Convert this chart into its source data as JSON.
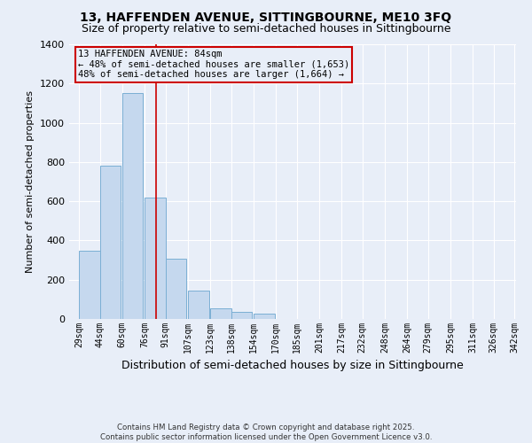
{
  "title_line1": "13, HAFFENDEN AVENUE, SITTINGBOURNE, ME10 3FQ",
  "title_line2": "Size of property relative to semi-detached houses in Sittingbourne",
  "xlabel": "Distribution of semi-detached houses by size in Sittingbourne",
  "ylabel": "Number of semi-detached properties",
  "footer_line1": "Contains HM Land Registry data © Crown copyright and database right 2025.",
  "footer_line2": "Contains public sector information licensed under the Open Government Licence v3.0.",
  "bin_lefts": [
    29,
    44,
    60,
    76,
    91,
    107,
    123,
    138,
    154,
    170,
    185,
    201,
    217,
    232,
    248,
    264,
    279,
    295,
    311,
    326
  ],
  "bin_width": 15,
  "bin_labels": [
    "29sqm",
    "44sqm",
    "60sqm",
    "76sqm",
    "91sqm",
    "107sqm",
    "123sqm",
    "138sqm",
    "154sqm",
    "170sqm",
    "185sqm",
    "201sqm",
    "217sqm",
    "232sqm",
    "248sqm",
    "264sqm",
    "279sqm",
    "295sqm",
    "311sqm",
    "326sqm",
    "342sqm"
  ],
  "counts": [
    350,
    780,
    1150,
    620,
    305,
    145,
    55,
    35,
    25,
    0,
    0,
    0,
    0,
    0,
    0,
    0,
    0,
    0,
    0,
    0
  ],
  "bar_color": "#c5d8ee",
  "bar_edge_color": "#7bafd4",
  "highlight_x": 84,
  "highlight_color": "#cc0000",
  "annotation_title": "13 HAFFENDEN AVENUE: 84sqm",
  "annotation_line2": "← 48% of semi-detached houses are smaller (1,653)",
  "annotation_line3": "48% of semi-detached houses are larger (1,664) →",
  "annotation_box_color": "#cc0000",
  "ylim": [
    0,
    1400
  ],
  "xlim_left": 22,
  "xlim_right": 342,
  "yticks": [
    0,
    200,
    400,
    600,
    800,
    1000,
    1200,
    1400
  ],
  "bg_color": "#e8eef8",
  "grid_color": "#ffffff",
  "title_fontsize": 10,
  "subtitle_fontsize": 9
}
